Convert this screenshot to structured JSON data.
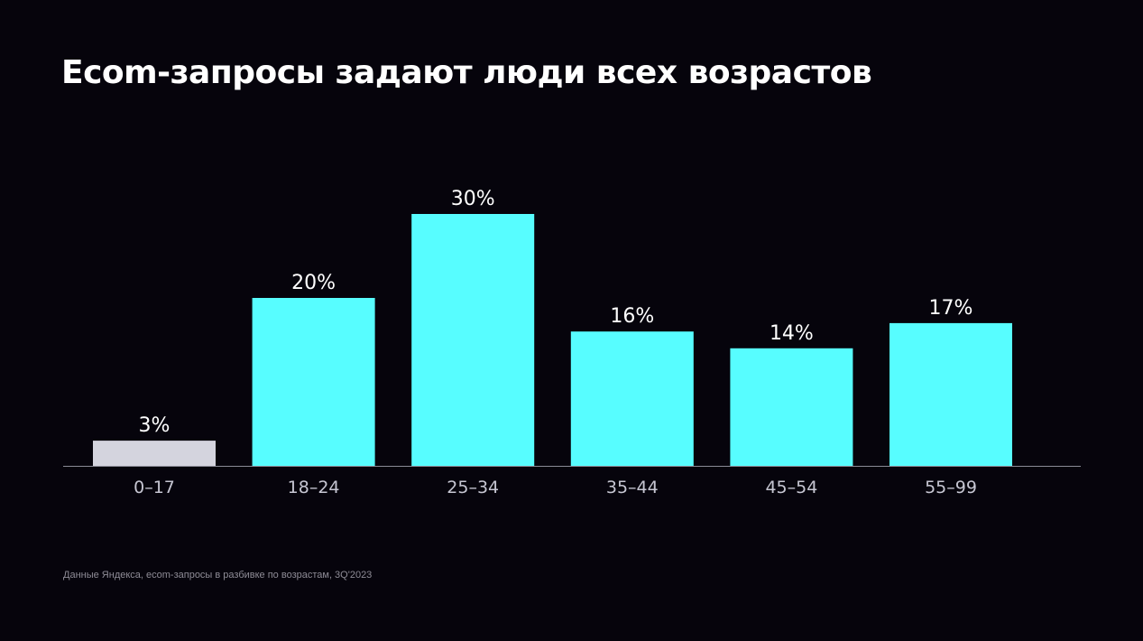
{
  "title": "Ecom-запросы задают люди всех возрастов",
  "footnote": "Данные Яндекса, ecom-запросы в разбивке по возрастам, 3Q'2023",
  "colors": {
    "background": "#06040c",
    "bar_accent": "#57fdff",
    "bar_muted": "#d4d4de",
    "axis": "#8a8a96",
    "value_label": "#ffffff",
    "tick_label": "#c6c6d2"
  },
  "chart_data": {
    "type": "bar",
    "title": "",
    "xlabel": "",
    "ylabel": "",
    "categories": [
      "0–17",
      "18–24",
      "25–34",
      "35–44",
      "45–54",
      "55–99"
    ],
    "values": [
      3,
      20,
      30,
      16,
      14,
      17
    ],
    "value_labels": [
      "3%",
      "20%",
      "30%",
      "16%",
      "14%",
      "17%"
    ],
    "highlight": [
      false,
      true,
      true,
      true,
      true,
      true
    ],
    "unit": "%",
    "ylim": [
      0,
      30
    ],
    "grid": false,
    "legend": "none"
  }
}
